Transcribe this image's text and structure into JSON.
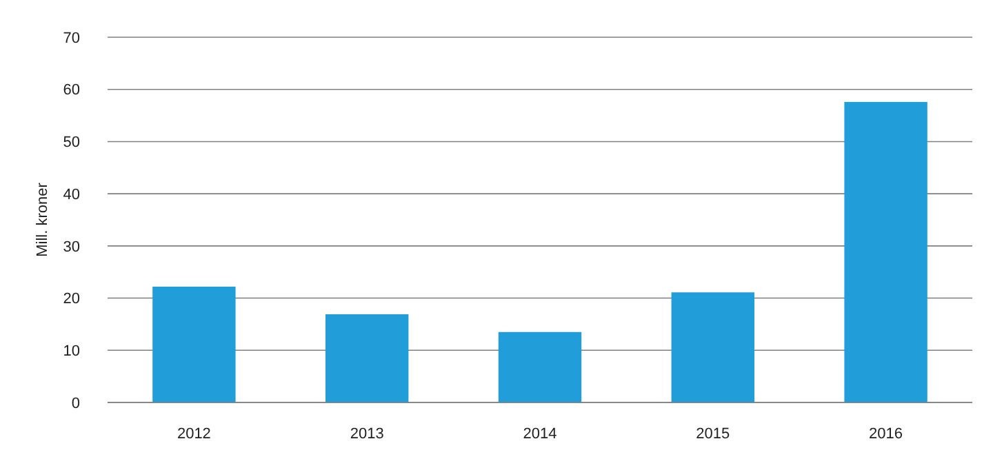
{
  "chart_data": {
    "type": "bar",
    "ylabel": "Mill. kroner",
    "categories": [
      "2012",
      "2013",
      "2014",
      "2015",
      "2016"
    ],
    "values": [
      22.2,
      16.9,
      13.5,
      21.1,
      57.6
    ],
    "color": "#219dd9",
    "ylim": [
      0,
      70
    ],
    "yticks": [
      0,
      10,
      20,
      30,
      40,
      50,
      60,
      70
    ],
    "grid": "y"
  }
}
